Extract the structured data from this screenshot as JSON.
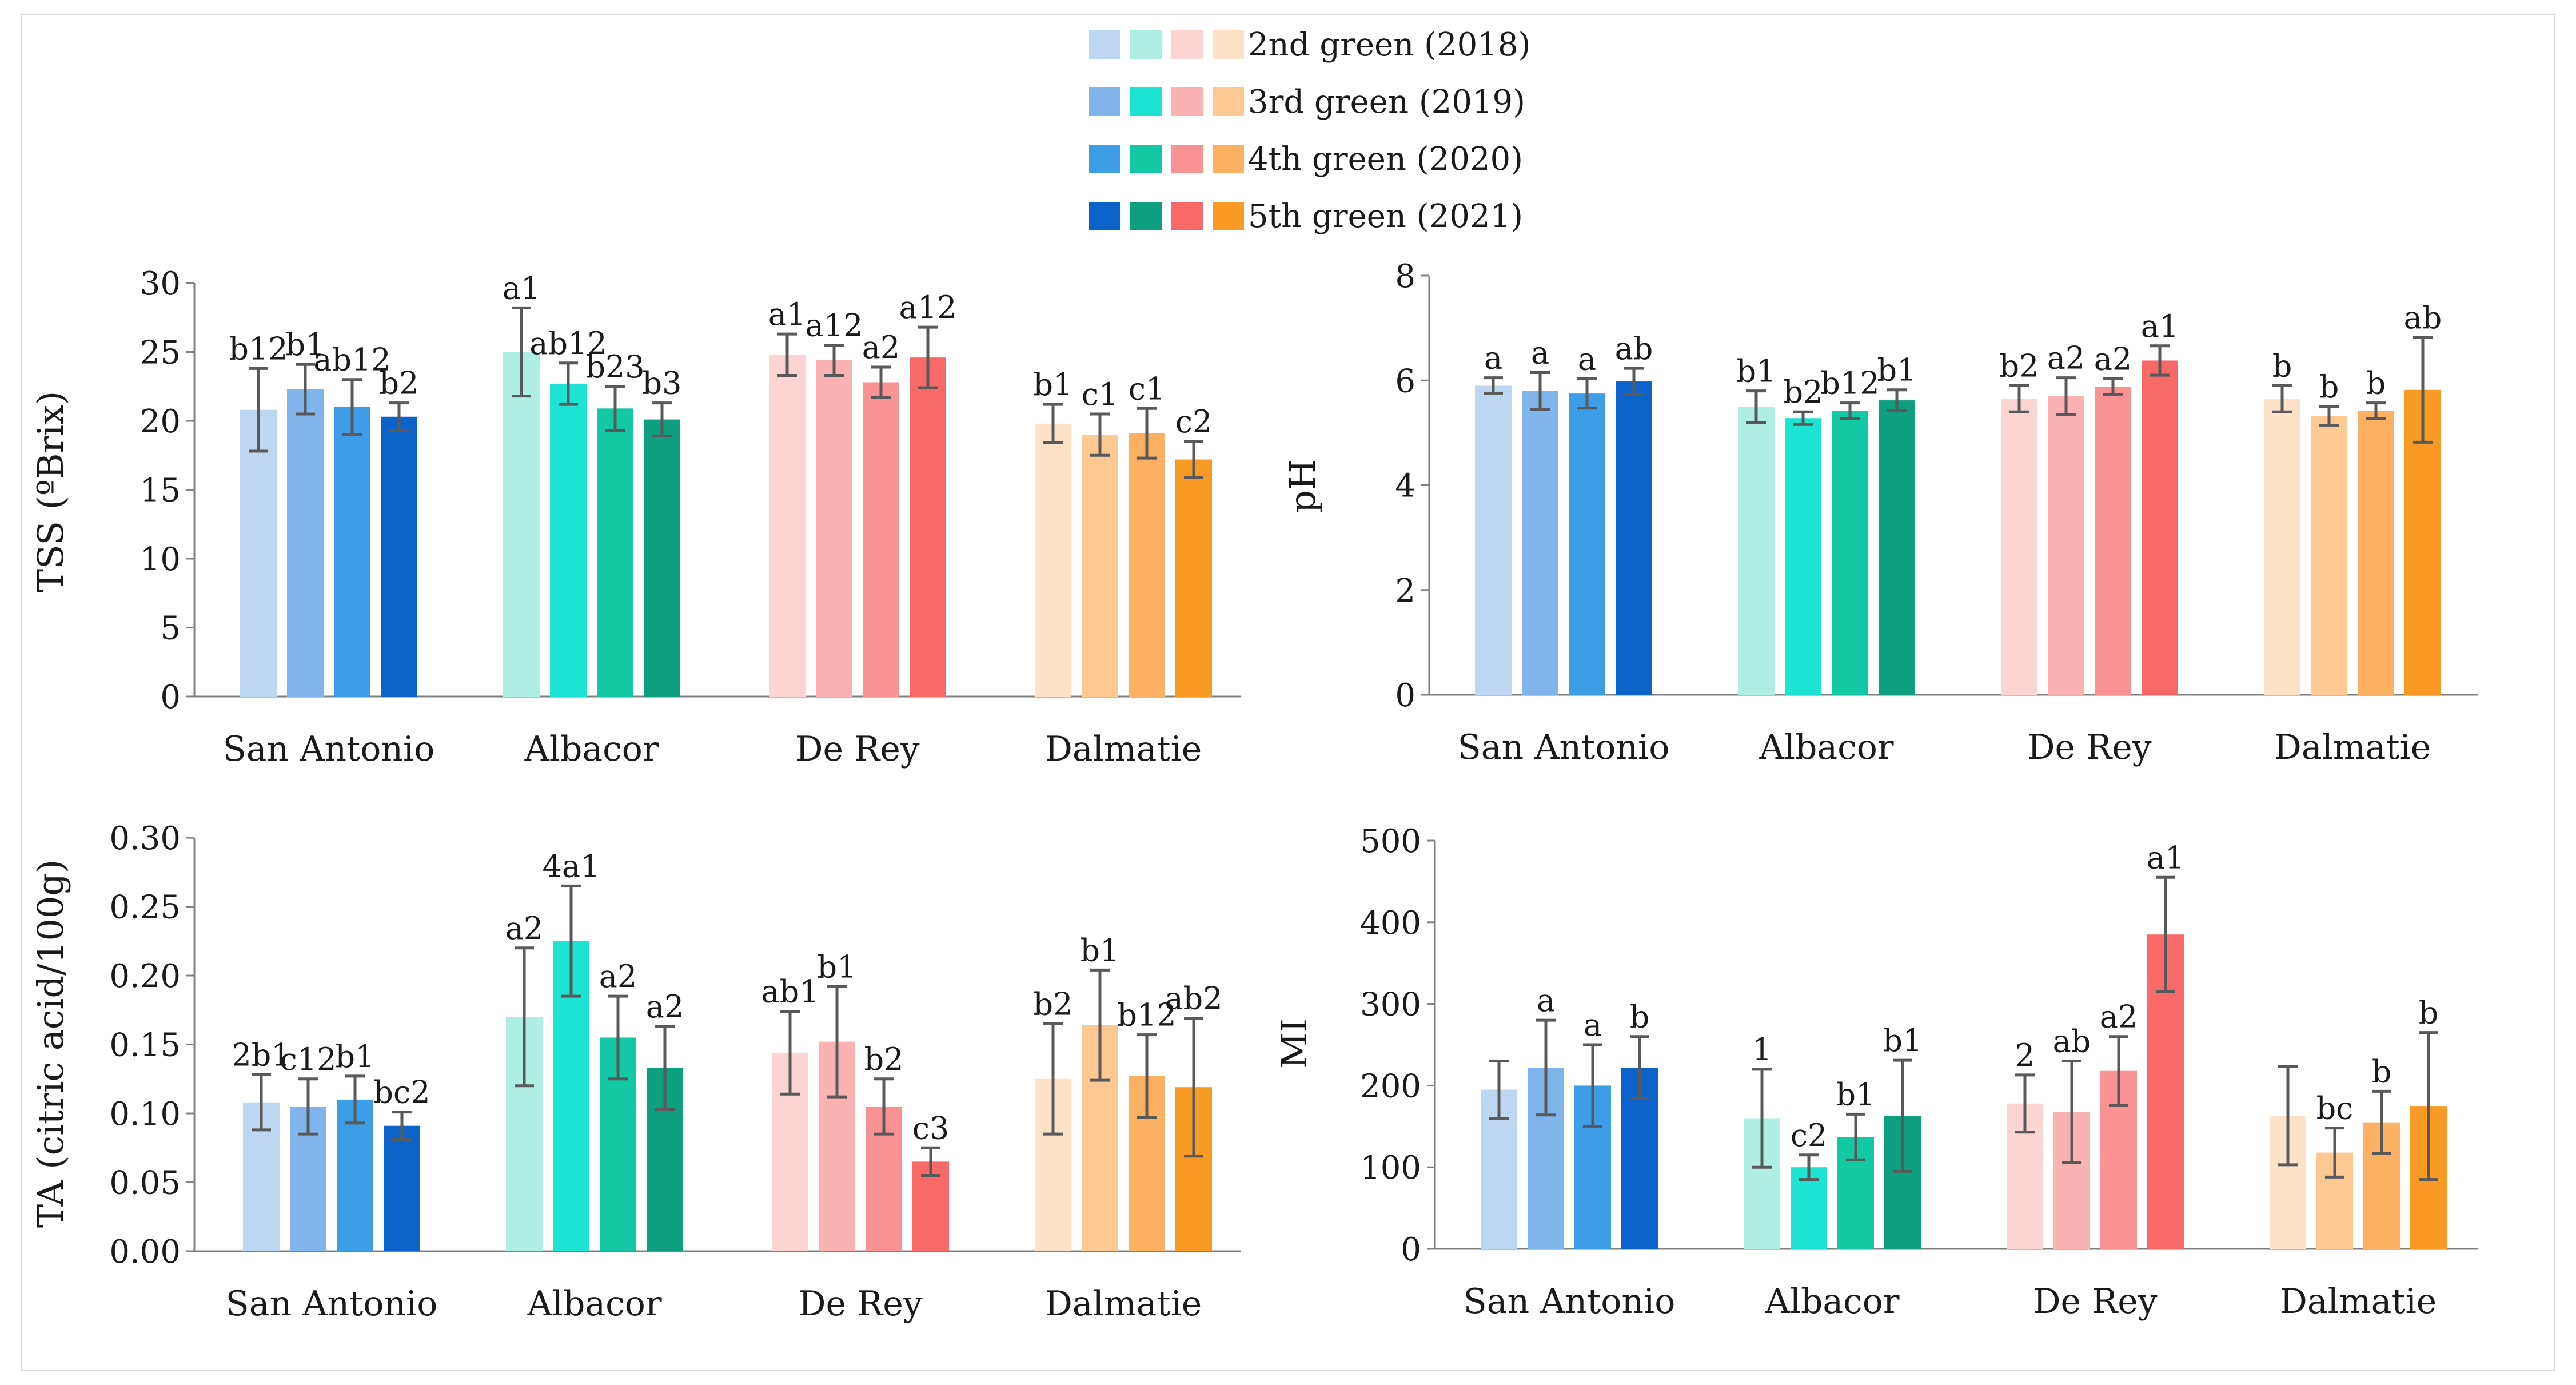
{
  "legend": {
    "entries": [
      {
        "label": "2nd green (2018)",
        "colors": [
          "#bdd7f2",
          "#aeeee3",
          "#fcd4d4",
          "#fde2c8"
        ]
      },
      {
        "label": "3rd green (2019)",
        "colors": [
          "#7fb5ea",
          "#1de3d2",
          "#fbb2b2",
          "#fdc892"
        ]
      },
      {
        "label": "4th green (2020)",
        "colors": [
          "#3d9de6",
          "#12c9a4",
          "#f99393",
          "#fbb062"
        ]
      },
      {
        "label": "5th green (2021)",
        "colors": [
          "#0b63c9",
          "#0ea07e",
          "#f86a6a",
          "#f89a24"
        ]
      }
    ]
  },
  "chart_data": [
    {
      "id": "tss",
      "type": "bar",
      "ylabel": "TSS (ºBrix)",
      "ylim": [
        0,
        30
      ],
      "yticks": [
        "0",
        "5",
        "10",
        "15",
        "20",
        "25",
        "30"
      ],
      "categories": [
        "San Antonio",
        "Albacor",
        "De Rey",
        "Dalmatie"
      ],
      "series": [
        {
          "name": "2nd green (2018)",
          "values": [
            20.8,
            25.0,
            24.8,
            19.8
          ],
          "errors": [
            3.0,
            3.2,
            1.5,
            1.4
          ],
          "labels": [
            "b12",
            "a1",
            "a1",
            "b1"
          ]
        },
        {
          "name": "3rd green (2019)",
          "values": [
            22.3,
            22.7,
            24.4,
            19.0
          ],
          "errors": [
            1.8,
            1.5,
            1.1,
            1.5
          ],
          "labels": [
            "b1",
            "ab12",
            "a12",
            "c1"
          ]
        },
        {
          "name": "4th green (2020)",
          "values": [
            21.0,
            20.9,
            22.8,
            19.1
          ],
          "errors": [
            2.0,
            1.6,
            1.1,
            1.8
          ],
          "labels": [
            "ab12",
            "b23",
            "a2",
            "c1"
          ]
        },
        {
          "name": "5th green (2021)",
          "values": [
            20.3,
            20.1,
            24.6,
            17.2
          ],
          "errors": [
            1.0,
            1.2,
            2.2,
            1.3
          ],
          "labels": [
            "b2",
            "b3",
            "a12",
            "c2"
          ]
        }
      ]
    },
    {
      "id": "ph",
      "type": "bar",
      "ylabel": "pH",
      "ylim": [
        0,
        8
      ],
      "yticks": [
        "0",
        "2",
        "4",
        "6",
        "8"
      ],
      "categories": [
        "San Antonio",
        "Albacor",
        "De Rey",
        "Dalmatie"
      ],
      "series": [
        {
          "name": "2nd green (2018)",
          "values": [
            5.9,
            5.5,
            5.65,
            5.65
          ],
          "errors": [
            0.15,
            0.3,
            0.25,
            0.25
          ],
          "labels": [
            "a",
            "b1",
            "b2",
            "b"
          ]
        },
        {
          "name": "3rd green (2019)",
          "values": [
            5.8,
            5.28,
            5.7,
            5.32
          ],
          "errors": [
            0.35,
            0.12,
            0.35,
            0.18
          ],
          "labels": [
            "a",
            "b2",
            "a2",
            "b"
          ]
        },
        {
          "name": "4th green (2020)",
          "values": [
            5.75,
            5.42,
            5.88,
            5.42
          ],
          "errors": [
            0.28,
            0.15,
            0.15,
            0.15
          ],
          "labels": [
            "a",
            "b12",
            "a2",
            "b"
          ]
        },
        {
          "name": "5th green (2021)",
          "values": [
            5.98,
            5.62,
            6.38,
            5.82
          ],
          "errors": [
            0.25,
            0.2,
            0.28,
            1.0
          ],
          "labels": [
            "ab",
            "b1",
            "a1",
            "ab"
          ]
        }
      ]
    },
    {
      "id": "ta",
      "type": "bar",
      "ylabel": "TA (citric acid/100g)",
      "ylim": [
        0,
        0.3
      ],
      "yticks": [
        "0.00",
        "0.05",
        "0.10",
        "0.15",
        "0.20",
        "0.25",
        "0.30"
      ],
      "categories": [
        "San Antonio",
        "Albacor",
        "De Rey",
        "Dalmatie"
      ],
      "series": [
        {
          "name": "2nd green (2018)",
          "values": [
            0.108,
            0.17,
            0.144,
            0.125
          ],
          "errors": [
            0.02,
            0.05,
            0.03,
            0.04
          ],
          "labels": [
            "2b1",
            "a2",
            "ab1",
            "b2"
          ]
        },
        {
          "name": "3rd green (2019)",
          "values": [
            0.105,
            0.225,
            0.152,
            0.164
          ],
          "errors": [
            0.02,
            0.04,
            0.04,
            0.04
          ],
          "labels": [
            "c12",
            "4a1",
            "b1",
            "b1"
          ]
        },
        {
          "name": "4th green (2020)",
          "values": [
            0.11,
            0.155,
            0.105,
            0.127
          ],
          "errors": [
            0.017,
            0.03,
            0.02,
            0.03
          ],
          "labels": [
            "b1",
            "a2",
            "b2",
            "b12"
          ]
        },
        {
          "name": "5th green (2021)",
          "values": [
            0.091,
            0.133,
            0.065,
            0.119
          ],
          "errors": [
            0.01,
            0.03,
            0.01,
            0.05
          ],
          "labels": [
            "bc2",
            "a2",
            "c3",
            "ab2"
          ]
        }
      ]
    },
    {
      "id": "mi",
      "type": "bar",
      "ylabel": "MI",
      "ylim": [
        0,
        500
      ],
      "yticks": [
        "0",
        "100",
        "200",
        "300",
        "400",
        "500"
      ],
      "categories": [
        "San Antonio",
        "Albacor",
        "De Rey",
        "Dalmatie"
      ],
      "series": [
        {
          "name": "2nd green (2018)",
          "values": [
            195,
            160,
            178,
            163
          ],
          "errors": [
            35,
            60,
            35,
            60
          ],
          "labels": [
            "",
            "1",
            "2",
            ""
          ]
        },
        {
          "name": "3rd green (2019)",
          "values": [
            222,
            100,
            168,
            118
          ],
          "errors": [
            58,
            15,
            62,
            30
          ],
          "labels": [
            "a",
            "c2",
            "ab",
            "bc"
          ]
        },
        {
          "name": "4th green (2020)",
          "values": [
            200,
            137,
            218,
            155
          ],
          "errors": [
            50,
            28,
            42,
            38
          ],
          "labels": [
            "a",
            "b1",
            "a2",
            "b"
          ]
        },
        {
          "name": "5th green (2021)",
          "values": [
            222,
            163,
            385,
            175
          ],
          "errors": [
            38,
            68,
            70,
            90
          ],
          "labels": [
            "b",
            "b1",
            "a1",
            "b"
          ]
        }
      ]
    }
  ]
}
